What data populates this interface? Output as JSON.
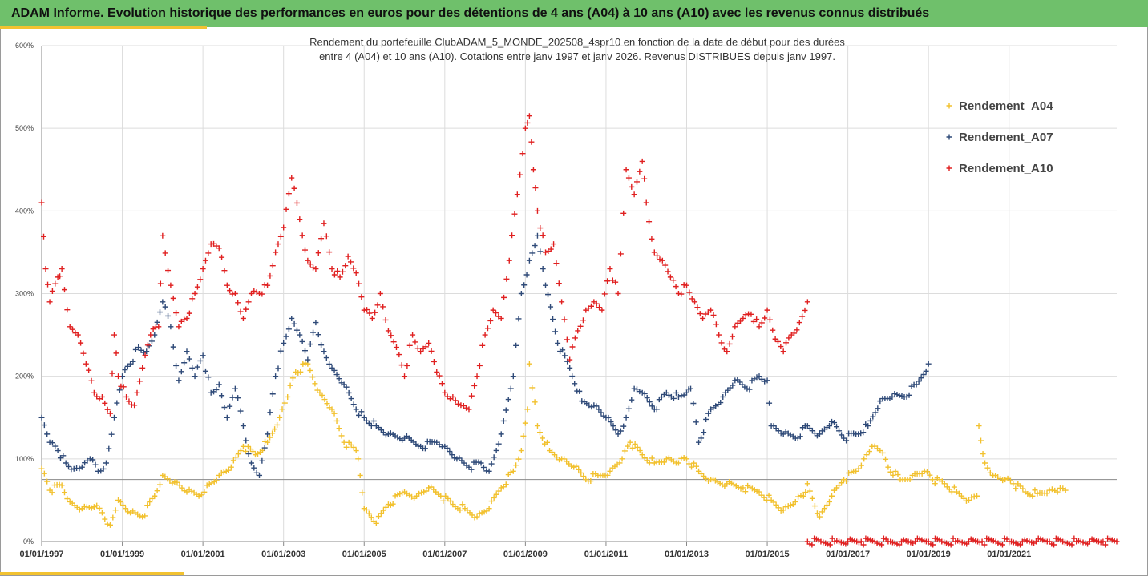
{
  "header": {
    "title": "ADAM Informe. Evolution historique des performances en euros pour des détentions de 4 ans (A04) à 10 ans (A10) avec les revenus connus distribués"
  },
  "chart_data": {
    "type": "scatter",
    "title": "Rendement du portefeuille ClubADAM_5_MONDE_202508_4spr10  en fonction de la date de début pour des durées",
    "subtitle": "entre 4 (A04) et 10 ans (A10). Cotations entre janv 1997 et janv 2026. Revenus DISTRIBUES depuis janv 1997.",
    "xlabel": "",
    "ylabel": "",
    "xlim": [
      1997.0,
      2023.67
    ],
    "ylim": [
      0,
      600
    ],
    "y_tick_values": [
      0,
      100,
      200,
      300,
      400,
      500,
      600
    ],
    "y_tick_labels": [
      "0%",
      "100%",
      "200%",
      "300%",
      "400%",
      "500%",
      "600%"
    ],
    "x_tick_values": [
      1997,
      1999,
      2001,
      2003,
      2005,
      2007,
      2009,
      2011,
      2013,
      2015,
      2017,
      2019,
      2021
    ],
    "x_tick_labels": [
      "01/01/1997",
      "01/01/1999",
      "01/01/2001",
      "01/01/2003",
      "01/01/2005",
      "01/01/2007",
      "01/01/2009",
      "01/01/2011",
      "01/01/2013",
      "01/01/2015",
      "01/01/2017",
      "01/01/2019",
      "01/01/2021"
    ],
    "reference_line": 75,
    "grid": true,
    "legend_position": "top-right",
    "series": [
      {
        "name": "Rendement_A04",
        "color": "#f2c12e",
        "x": [
          1997.0,
          1997.2,
          1997.5,
          1997.7,
          1998.0,
          1998.3,
          1998.5,
          1998.7,
          1998.9,
          1999.2,
          1999.5,
          1999.8,
          2000.0,
          2000.3,
          2000.6,
          2000.9,
          2001.1,
          2001.4,
          2001.7,
          2002.0,
          2002.3,
          2002.6,
          2002.9,
          2003.1,
          2003.3,
          2003.6,
          2003.9,
          2004.2,
          2004.5,
          2004.8,
          2004.85,
          2005.0,
          2005.3,
          2005.6,
          2006.0,
          2006.3,
          2006.6,
          2006.9,
          2007.2,
          2007.5,
          2007.8,
          2008.1,
          2008.4,
          2008.7,
          2008.9,
          2009.05,
          2009.1,
          2009.3,
          2009.6,
          2009.9,
          2010.2,
          2010.5,
          2010.8,
          2011.1,
          2011.4,
          2011.6,
          2011.9,
          2012.2,
          2012.5,
          2012.8,
          2013.0,
          2013.3,
          2013.6,
          2014.0,
          2014.4,
          2014.8,
          2015.1,
          2015.4,
          2015.7,
          2015.9,
          2016.0,
          2016.3,
          2016.6,
          2016.9,
          2017.2,
          2017.4,
          2017.6,
          2017.8,
          2018.0,
          2018.3,
          2018.6,
          2018.9,
          2019.1,
          2019.4,
          2019.7,
          2020.0,
          2020.2,
          2020.25,
          2020.4,
          2020.6,
          2020.9,
          2021.1,
          2021.4,
          2021.7,
          2022.0,
          2022.2,
          2022.4
        ],
        "values": [
          88,
          62,
          68,
          48,
          40,
          42,
          35,
          20,
          50,
          35,
          30,
          55,
          80,
          72,
          60,
          55,
          68,
          80,
          90,
          115,
          105,
          120,
          150,
          175,
          205,
          215,
          180,
          160,
          120,
          110,
          100,
          40,
          22,
          45,
          60,
          55,
          65,
          55,
          45,
          40,
          30,
          40,
          65,
          85,
          110,
          160,
          215,
          140,
          110,
          100,
          90,
          75,
          80,
          85,
          100,
          120,
          105,
          95,
          100,
          95,
          100,
          85,
          75,
          70,
          65,
          60,
          50,
          38,
          48,
          55,
          70,
          30,
          55,
          75,
          85,
          100,
          115,
          110,
          90,
          75,
          80,
          85,
          75,
          70,
          60,
          50,
          55,
          140,
          95,
          80,
          75,
          70,
          60,
          58,
          62,
          60,
          62
        ]
      },
      {
        "name": "Rendement_A07",
        "color": "#2f4a78",
        "x": [
          1997.0,
          1997.2,
          1997.4,
          1997.6,
          1997.8,
          1998.0,
          1998.2,
          1998.4,
          1998.6,
          1998.8,
          1999.0,
          1999.2,
          1999.4,
          1999.6,
          1999.8,
          2000.0,
          2000.2,
          2000.4,
          2000.6,
          2000.8,
          2001.0,
          2001.2,
          2001.4,
          2001.6,
          2001.8,
          2002.0,
          2002.2,
          2002.4,
          2002.6,
          2002.8,
          2003.0,
          2003.2,
          2003.4,
          2003.6,
          2003.8,
          2004.0,
          2004.2,
          2004.5,
          2004.8,
          2005.0,
          2005.3,
          2005.6,
          2006.0,
          2006.4,
          2006.8,
          2007.0,
          2007.3,
          2007.6,
          2007.9,
          2008.1,
          2008.4,
          2008.7,
          2008.9,
          2009.1,
          2009.3,
          2009.5,
          2009.8,
          2010.1,
          2010.4,
          2010.7,
          2011.0,
          2011.3,
          2011.5,
          2011.7,
          2011.9,
          2012.2,
          2012.5,
          2012.8,
          2013.0,
          2013.1,
          2013.3,
          2013.6,
          2013.9,
          2014.2,
          2014.5,
          2014.8,
          2015.0,
          2015.1,
          2015.4,
          2015.7,
          2016.0,
          2016.3,
          2016.6,
          2016.9,
          2017.2,
          2017.5,
          2017.8,
          2018.1,
          2018.4,
          2018.7,
          2019.0
        ],
        "values": [
          150,
          120,
          110,
          95,
          88,
          90,
          100,
          85,
          95,
          150,
          200,
          215,
          235,
          230,
          250,
          290,
          260,
          195,
          230,
          200,
          225,
          180,
          190,
          150,
          185,
          140,
          95,
          80,
          130,
          200,
          240,
          270,
          250,
          220,
          265,
          230,
          210,
          190,
          160,
          150,
          140,
          130,
          125,
          115,
          120,
          115,
          100,
          90,
          95,
          85,
          130,
          200,
          300,
          340,
          370,
          310,
          240,
          210,
          170,
          165,
          150,
          130,
          150,
          185,
          180,
          160,
          180,
          175,
          180,
          185,
          120,
          160,
          175,
          195,
          185,
          200,
          195,
          140,
          130,
          125,
          140,
          130,
          145,
          125,
          130,
          140,
          170,
          175,
          175,
          190,
          215
        ]
      },
      {
        "name": "Rendement_A10",
        "color": "#e02020",
        "x": [
          1997.0,
          1997.1,
          1997.2,
          1997.4,
          1997.5,
          1997.7,
          1997.9,
          1998.1,
          1998.3,
          1998.5,
          1998.7,
          1998.8,
          1998.9,
          1999.1,
          1999.3,
          1999.5,
          1999.7,
          1999.9,
          2000.0,
          2000.2,
          2000.4,
          2000.6,
          2000.8,
          2001.0,
          2001.2,
          2001.4,
          2001.6,
          2001.8,
          2002.0,
          2002.2,
          2002.4,
          2002.6,
          2002.8,
          2003.0,
          2003.2,
          2003.4,
          2003.6,
          2003.8,
          2004.0,
          2004.2,
          2004.4,
          2004.6,
          2004.8,
          2005.0,
          2005.2,
          2005.4,
          2005.6,
          2005.8,
          2006.0,
          2006.2,
          2006.4,
          2006.6,
          2006.8,
          2007.0,
          2007.2,
          2007.4,
          2007.6,
          2007.8,
          2008.0,
          2008.2,
          2008.4,
          2008.6,
          2008.8,
          2009.0,
          2009.1,
          2009.2,
          2009.3,
          2009.5,
          2009.7,
          2009.9,
          2010.1,
          2010.3,
          2010.5,
          2010.7,
          2010.9,
          2011.1,
          2011.3,
          2011.5,
          2011.7,
          2011.9,
          2012.0,
          2012.2,
          2012.4,
          2012.6,
          2012.8,
          2013.0,
          2013.2,
          2013.4,
          2013.6,
          2013.8,
          2014.0,
          2014.2,
          2014.4,
          2014.6,
          2014.8,
          2015.0,
          2015.2,
          2015.4,
          2015.6,
          2015.8,
          2016.0
        ],
        "values": [
          410,
          330,
          290,
          320,
          330,
          260,
          250,
          215,
          180,
          175,
          155,
          250,
          200,
          175,
          165,
          210,
          250,
          260,
          370,
          310,
          260,
          270,
          300,
          330,
          360,
          355,
          310,
          300,
          270,
          300,
          300,
          310,
          350,
          380,
          440,
          390,
          340,
          330,
          385,
          330,
          320,
          345,
          325,
          280,
          270,
          300,
          255,
          235,
          200,
          250,
          230,
          240,
          205,
          180,
          175,
          165,
          160,
          200,
          250,
          280,
          270,
          340,
          420,
          500,
          515,
          450,
          400,
          350,
          360,
          290,
          220,
          255,
          280,
          290,
          280,
          330,
          300,
          450,
          420,
          460,
          410,
          350,
          340,
          320,
          300,
          310,
          290,
          270,
          280,
          250,
          230,
          260,
          270,
          275,
          260,
          280,
          245,
          230,
          250,
          265,
          290
        ]
      },
      {
        "name": "Rendement_A10",
        "color": "#e02020",
        "x": [
          2016.0,
          2016.33,
          2016.67,
          2017.0,
          2017.33,
          2017.67,
          2018.0,
          2018.33,
          2018.67,
          2019.0,
          2019.33,
          2019.67,
          2020.0,
          2020.33,
          2020.67,
          2021.0,
          2021.33,
          2021.67,
          2022.0,
          2022.33,
          2022.67,
          2023.0,
          2023.33,
          2023.67
        ],
        "values": [
          0,
          0,
          0,
          0,
          0,
          0,
          0,
          0,
          0,
          0,
          0,
          0,
          0,
          0,
          0,
          0,
          0,
          0,
          0,
          0,
          0,
          0,
          0,
          0
        ]
      }
    ],
    "legend": [
      "Rendement_A04",
      "Rendement_A07",
      "Rendement_A10"
    ]
  }
}
